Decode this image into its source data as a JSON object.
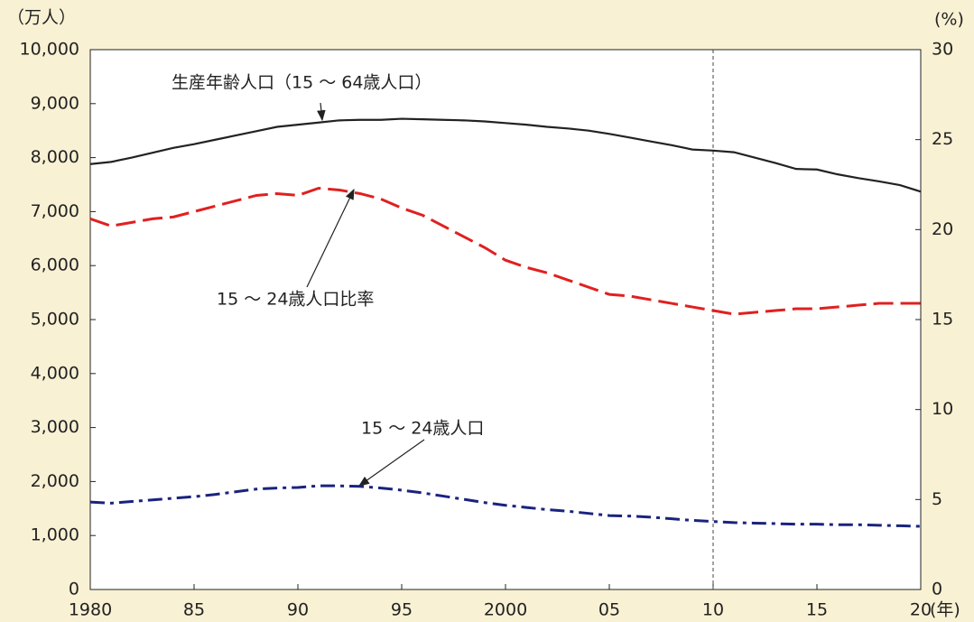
{
  "chart_data": {
    "type": "line",
    "x": [
      1980,
      1981,
      1982,
      1983,
      1984,
      1985,
      1986,
      1987,
      1988,
      1989,
      1990,
      1991,
      1992,
      1993,
      1994,
      1995,
      1996,
      1997,
      1998,
      1999,
      2000,
      2001,
      2002,
      2003,
      2004,
      2005,
      2006,
      2007,
      2008,
      2009,
      2010,
      2011,
      2012,
      2013,
      2014,
      2015,
      2016,
      2017,
      2018,
      2019,
      2020
    ],
    "xlim": [
      1980,
      2020
    ],
    "xticks": [
      1980,
      {
        "value": 1985,
        "label": "85"
      },
      {
        "value": 1990,
        "label": "90"
      },
      {
        "value": 1995,
        "label": "95"
      },
      2000,
      {
        "value": 2005,
        "label": "05"
      },
      {
        "value": 2010,
        "label": "10"
      },
      {
        "value": 2015,
        "label": "15"
      },
      {
        "value": 2020,
        "label": "20"
      }
    ],
    "xlabel": "(年)",
    "ylabel": "（万人）",
    "y2label": "(%)",
    "ylim": [
      0,
      10000
    ],
    "yticks": [
      0,
      {
        "value": 1000,
        "label": "1,000"
      },
      {
        "value": 2000,
        "label": "2,000"
      },
      {
        "value": 3000,
        "label": "3,000"
      },
      {
        "value": 4000,
        "label": "4,000"
      },
      {
        "value": 5000,
        "label": "5,000"
      },
      {
        "value": 6000,
        "label": "6,000"
      },
      {
        "value": 7000,
        "label": "7,000"
      },
      {
        "value": 8000,
        "label": "8,000"
      },
      {
        "value": 9000,
        "label": "9,000"
      },
      {
        "value": 10000,
        "label": "10,000"
      }
    ],
    "y2lim": [
      0,
      30
    ],
    "y2ticks": [
      0,
      5,
      10,
      15,
      20,
      25,
      30
    ],
    "reference_x": 2010,
    "series": [
      {
        "name": "生産年齢人口（15 ～ 64歳人口）",
        "color": "#222222",
        "dash": "solid",
        "values": [
          7880,
          7920,
          8000,
          8090,
          8180,
          8250,
          8330,
          8410,
          8490,
          8570,
          8610,
          8650,
          8690,
          8700,
          8700,
          8720,
          8710,
          8700,
          8690,
          8670,
          8640,
          8610,
          8570,
          8540,
          8500,
          8440,
          8370,
          8300,
          8230,
          8150,
          8130,
          8100,
          8000,
          7900,
          7790,
          7780,
          7690,
          7620,
          7560,
          7490,
          7370
        ]
      },
      {
        "name": "15 ～ 24歳人口比率",
        "color": "#e02020",
        "dash": "dashed",
        "axis": "y2",
        "values": [
          20.6,
          20.2,
          20.4,
          20.6,
          20.7,
          21.0,
          21.3,
          21.6,
          21.9,
          22.0,
          21.9,
          22.3,
          22.2,
          22.0,
          21.7,
          21.2,
          20.8,
          20.2,
          19.6,
          19.0,
          18.3,
          17.9,
          17.6,
          17.2,
          16.8,
          16.4,
          16.3,
          16.1,
          15.9,
          15.7,
          15.5,
          15.3,
          15.4,
          15.5,
          15.6,
          15.6,
          15.7,
          15.8,
          15.9,
          15.9,
          15.9
        ]
      },
      {
        "name": "15 ～ 24歳人口",
        "color": "#1a237e",
        "dash": "dashdot",
        "values": [
          1620,
          1600,
          1630,
          1660,
          1690,
          1720,
          1760,
          1810,
          1860,
          1880,
          1890,
          1920,
          1920,
          1910,
          1880,
          1840,
          1790,
          1730,
          1670,
          1610,
          1560,
          1520,
          1480,
          1450,
          1410,
          1370,
          1360,
          1340,
          1310,
          1280,
          1260,
          1240,
          1230,
          1220,
          1210,
          1210,
          1200,
          1200,
          1190,
          1180,
          1170
        ]
      }
    ]
  }
}
